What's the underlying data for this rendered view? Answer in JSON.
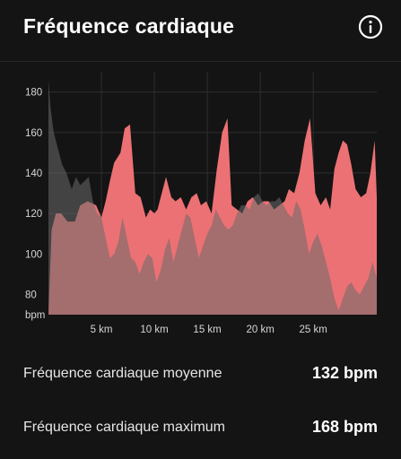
{
  "header": {
    "title": "Fréquence cardiaque"
  },
  "icons": {
    "info": "info-icon"
  },
  "stats": [
    {
      "label": "Fréquence cardiaque moyenne",
      "value": "132 bpm"
    },
    {
      "label": "Fréquence cardiaque maximum",
      "value": "168 bpm"
    }
  ],
  "colors": {
    "background": "#141414",
    "series_primary": "#ec7174",
    "series_secondary": "#6a6a6a",
    "text": "#ffffff"
  },
  "chart_data": {
    "type": "area",
    "title": "",
    "xlabel": "",
    "ylabel": "bpm",
    "xlim": [
      0,
      31
    ],
    "ylim": [
      70,
      190
    ],
    "y_ticks": [
      80,
      100,
      120,
      140,
      160,
      180
    ],
    "x_ticks": [
      5,
      10,
      15,
      20,
      25
    ],
    "x_tick_labels": [
      "5 km",
      "10 km",
      "15 km",
      "20 km",
      "25 km"
    ],
    "grid": true,
    "series": [
      {
        "name": "",
        "color": "#ec7174",
        "x": [
          0,
          0.3,
          0.7,
          1.2,
          1.8,
          2.5,
          3.0,
          3.7,
          4.5,
          5.0,
          5.4,
          5.8,
          6.2,
          6.8,
          7.2,
          7.7,
          8.2,
          8.7,
          9.2,
          9.6,
          10.0,
          10.3,
          10.7,
          11.1,
          11.6,
          12.0,
          12.5,
          13.0,
          13.5,
          14.0,
          14.4,
          14.9,
          15.4,
          15.9,
          16.4,
          16.9,
          17.3,
          17.8,
          18.3,
          18.8,
          19.3,
          19.8,
          20.3,
          20.8,
          21.3,
          21.8,
          22.3,
          22.7,
          23.2,
          23.7,
          24.2,
          24.7,
          25.2,
          25.7,
          26.2,
          26.6,
          27.0,
          27.4,
          27.8,
          28.2,
          28.6,
          29.0,
          29.5,
          30.0,
          30.4,
          30.8,
          31.0
        ],
        "values": [
          70,
          112,
          120,
          120,
          116,
          116,
          124,
          126,
          124,
          118,
          126,
          136,
          145,
          150,
          162,
          164,
          130,
          128,
          118,
          122,
          120,
          122,
          130,
          138,
          128,
          126,
          128,
          122,
          128,
          130,
          124,
          126,
          120,
          142,
          160,
          167,
          124,
          122,
          120,
          126,
          128,
          124,
          126,
          126,
          122,
          124,
          126,
          132,
          130,
          140,
          156,
          167,
          130,
          124,
          128,
          122,
          142,
          150,
          156,
          154,
          144,
          132,
          128,
          130,
          140,
          156,
          128
        ]
      },
      {
        "name": "",
        "color": "#6a6a6a",
        "x": [
          0,
          0.2,
          0.5,
          0.9,
          1.3,
          1.7,
          2.2,
          2.6,
          3.0,
          3.4,
          3.8,
          4.2,
          4.6,
          5.0,
          5.4,
          5.8,
          6.2,
          6.6,
          7.0,
          7.4,
          7.8,
          8.2,
          8.6,
          9.0,
          9.4,
          9.8,
          10.2,
          10.6,
          11.0,
          11.4,
          11.8,
          12.2,
          12.6,
          13.0,
          13.4,
          13.8,
          14.2,
          14.6,
          15.0,
          15.4,
          15.8,
          16.2,
          16.6,
          17.0,
          17.4,
          17.8,
          18.2,
          18.6,
          19.0,
          19.4,
          19.8,
          20.2,
          20.6,
          21.0,
          21.4,
          21.8,
          22.2,
          22.6,
          23.0,
          23.4,
          23.8,
          24.2,
          24.6,
          25.0,
          25.4,
          25.8,
          26.2,
          26.6,
          27.0,
          27.4,
          27.8,
          28.2,
          28.6,
          29.0,
          29.4,
          29.8,
          30.2,
          30.6,
          31.0
        ],
        "values": [
          186,
          172,
          160,
          152,
          144,
          140,
          132,
          138,
          134,
          136,
          138,
          126,
          120,
          118,
          108,
          98,
          100,
          106,
          118,
          108,
          98,
          96,
          90,
          96,
          100,
          98,
          86,
          92,
          102,
          108,
          96,
          104,
          112,
          120,
          118,
          108,
          98,
          104,
          110,
          114,
          122,
          118,
          114,
          112,
          114,
          120,
          124,
          124,
          122,
          128,
          130,
          126,
          124,
          126,
          126,
          128,
          124,
          120,
          118,
          126,
          122,
          112,
          100,
          106,
          110,
          104,
          96,
          88,
          78,
          72,
          78,
          84,
          86,
          82,
          80,
          84,
          88,
          96,
          88
        ]
      }
    ]
  }
}
